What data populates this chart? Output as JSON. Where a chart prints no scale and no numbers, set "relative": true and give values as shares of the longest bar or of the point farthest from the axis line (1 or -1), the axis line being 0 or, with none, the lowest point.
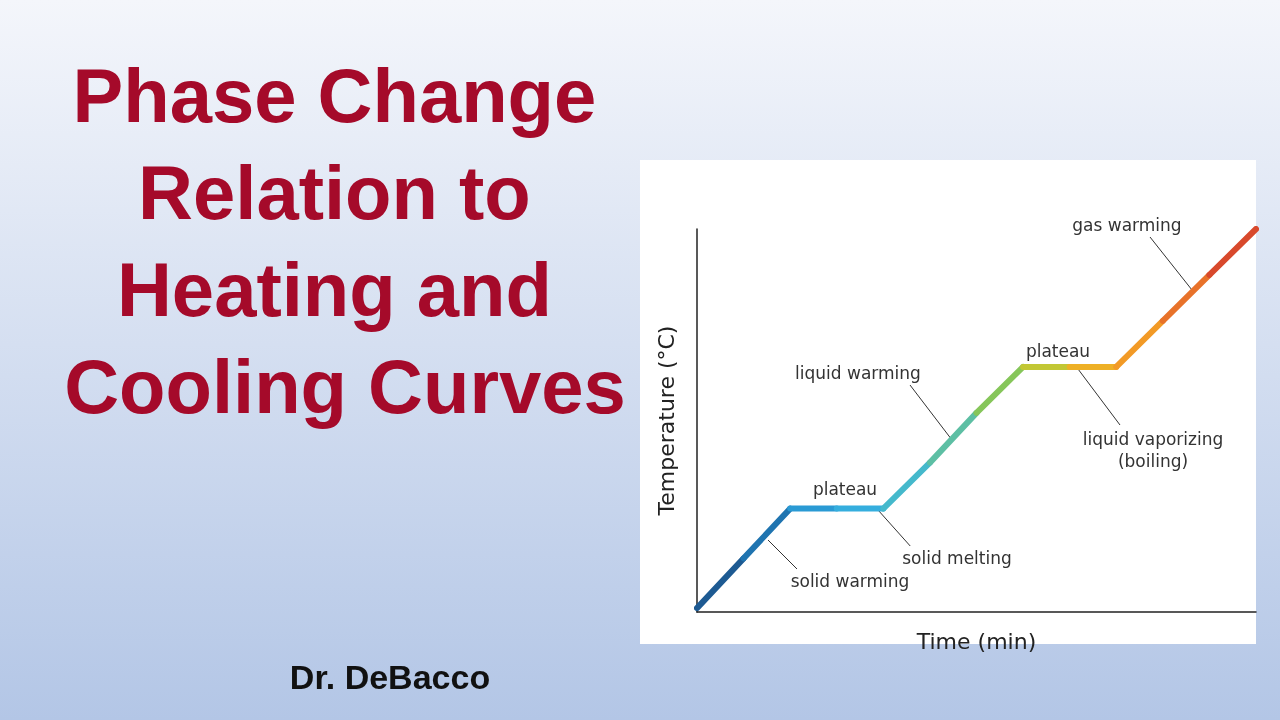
{
  "chart_data": {
    "type": "line",
    "title": "Phase Change Relation to Heating and Cooling Curves",
    "subtitle": "Dr. DeBacco",
    "xlabel": "Time (min)",
    "ylabel": "Temperature (°C)",
    "categories": [
      null,
      null,
      null,
      null,
      null,
      null,
      null,
      null,
      null,
      null,
      null,
      null,
      null
    ],
    "relative": true,
    "grid": false,
    "marker": "none",
    "line_style": "solid",
    "series": [
      {
        "color": "#1d5a92",
        "values": [
          0.01,
          0.14,
          null,
          null,
          null,
          null,
          null,
          null,
          null,
          null,
          null,
          null,
          null
        ]
      },
      {
        "color": "#1f74b0",
        "values": [
          null,
          0.14,
          0.27,
          null,
          null,
          null,
          null,
          null,
          null,
          null,
          null,
          null,
          null
        ]
      },
      {
        "color": "#2a9ad4",
        "values": [
          null,
          null,
          0.27,
          0.27,
          null,
          null,
          null,
          null,
          null,
          null,
          null,
          null,
          null
        ]
      },
      {
        "color": "#35aede",
        "values": [
          null,
          null,
          null,
          0.27,
          0.27,
          null,
          null,
          null,
          null,
          null,
          null,
          null,
          null
        ]
      },
      {
        "color": "#45b9cc",
        "values": [
          null,
          null,
          null,
          null,
          0.27,
          0.39,
          null,
          null,
          null,
          null,
          null,
          null,
          null
        ]
      },
      {
        "color": "#5dbfa4",
        "values": [
          null,
          null,
          null,
          null,
          null,
          0.39,
          0.52,
          null,
          null,
          null,
          null,
          null,
          null
        ]
      },
      {
        "color": "#86c65a",
        "values": [
          null,
          null,
          null,
          null,
          null,
          null,
          0.52,
          0.64,
          null,
          null,
          null,
          null,
          null
        ]
      },
      {
        "color": "#c2c734",
        "values": [
          null,
          null,
          null,
          null,
          null,
          null,
          null,
          0.64,
          0.64,
          null,
          null,
          null,
          null
        ]
      },
      {
        "color": "#eeb026",
        "values": [
          null,
          null,
          null,
          null,
          null,
          null,
          null,
          null,
          0.64,
          0.64,
          null,
          null,
          null
        ]
      },
      {
        "color": "#f29a26",
        "values": [
          null,
          null,
          null,
          null,
          null,
          null,
          null,
          null,
          null,
          0.64,
          0.76,
          null,
          null
        ]
      },
      {
        "color": "#e8722a",
        "values": [
          null,
          null,
          null,
          null,
          null,
          null,
          null,
          null,
          null,
          null,
          0.76,
          0.88,
          null
        ]
      },
      {
        "color": "#d8492c",
        "values": [
          null,
          null,
          null,
          null,
          null,
          null,
          null,
          null,
          null,
          null,
          null,
          0.88,
          1
        ]
      }
    ],
    "annotations": [
      "solid warming",
      "plateau",
      "solid melting",
      "liquid warming",
      "plateau",
      "liquid vaporizing\n(boiling)",
      "gas warming"
    ]
  }
}
